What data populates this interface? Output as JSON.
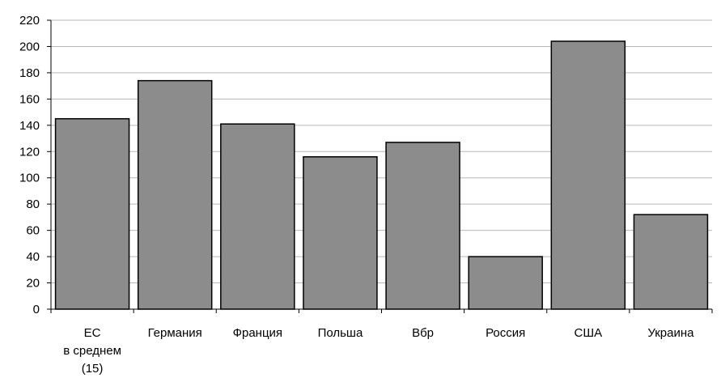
{
  "chart_data": {
    "type": "bar",
    "title": "",
    "xlabel": "",
    "ylabel": "",
    "categories": [
      [
        "ЕС",
        "в среднем",
        "(15)"
      ],
      [
        "Германия"
      ],
      [
        "Франция"
      ],
      [
        "Польша"
      ],
      [
        "Вбр"
      ],
      [
        "Россия"
      ],
      [
        "США"
      ],
      [
        "Украина"
      ]
    ],
    "values": [
      145,
      174,
      141,
      116,
      127,
      40,
      204,
      72
    ],
    "ylim": [
      0,
      220
    ],
    "yticks": [
      0,
      20,
      40,
      60,
      80,
      100,
      120,
      140,
      160,
      180,
      200,
      220
    ],
    "grid": true,
    "legend": "none",
    "colors": {
      "bar_fill": "#8c8c8c",
      "bar_stroke": "#000000",
      "grid": "#b8b8b8",
      "axis": "#000000"
    }
  }
}
